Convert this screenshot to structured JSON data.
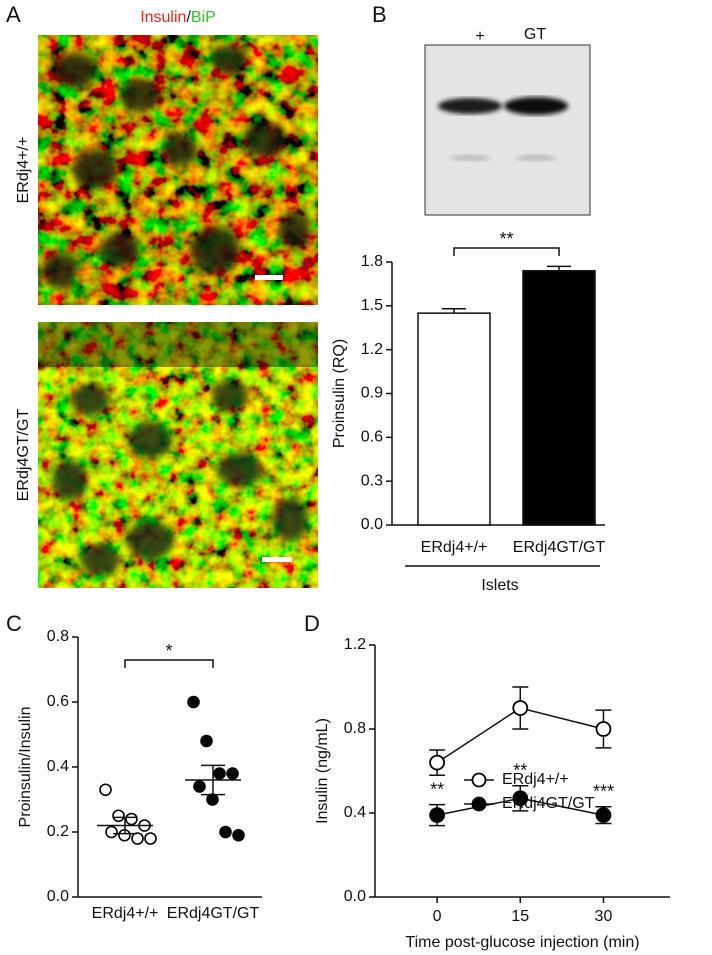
{
  "panels": [
    "A",
    "B",
    "C",
    "D"
  ],
  "images": {
    "title_parts": [
      "Insulin",
      "/",
      "BiP"
    ],
    "labels": [
      "ERdj4+/+",
      "ERdj4GT/GT"
    ]
  },
  "blot": {
    "lanes": [
      "+",
      "GT"
    ]
  },
  "chart_data": [
    {
      "type": "bar",
      "ylabel": "Proinsulin (RQ)",
      "categories": [
        "ERdj4+/+",
        "ERdj4GT/GT"
      ],
      "values": [
        1.45,
        1.74
      ],
      "errors": [
        0.03,
        0.03
      ],
      "colors": [
        "#ffffff",
        "#000000"
      ],
      "ylim": [
        0,
        1.8
      ],
      "yticks": [
        {
          "value": 0,
          "label": "0.0"
        },
        0.3,
        0.6,
        0.9,
        1.2,
        1.5,
        1.8
      ],
      "group_label": "Islets",
      "significance": "**"
    },
    {
      "type": "strip",
      "ylabel": "Proinsulin/Insulin",
      "categories": [
        "ERdj4+/+",
        "ERdj4GT/GT"
      ],
      "markers": [
        "open",
        "filled"
      ],
      "values": [
        [
          0.33,
          0.25,
          0.24,
          0.22,
          0.2,
          0.19,
          0.18,
          0.18
        ],
        [
          0.6,
          0.48,
          0.38,
          0.38,
          0.34,
          0.3,
          0.2,
          0.19
        ]
      ],
      "means": [
        0.22,
        0.36
      ],
      "errors": [
        0.025,
        0.045
      ],
      "ylim": [
        0,
        0.8
      ],
      "yticks": [
        {
          "value": 0,
          "label": "0.0"
        },
        0.2,
        0.4,
        0.6,
        0.8
      ],
      "significance": "*"
    },
    {
      "type": "line",
      "xlabel": "Time post-glucose injection (min)",
      "ylabel": "Insulin (ng/mL)",
      "x": [
        0,
        15,
        30
      ],
      "series": [
        {
          "name": "ERdj4+/+",
          "marker": "open",
          "values": [
            0.64,
            0.9,
            0.8
          ],
          "errors": [
            0.06,
            0.1,
            0.09
          ]
        },
        {
          "name": "ERdj4GT/GT",
          "marker": "filled",
          "values": [
            0.39,
            0.47,
            0.39
          ],
          "errors": [
            0.05,
            0.06,
            0.04
          ],
          "annotations": [
            "**",
            "**",
            "***"
          ]
        }
      ],
      "xlim": [
        -11.2,
        42
      ],
      "xticks": [
        0,
        15,
        30
      ],
      "ylim": [
        0,
        1.2
      ],
      "yticks": [
        {
          "value": 0,
          "label": "0.0"
        },
        0.4,
        0.8,
        1.2
      ],
      "legend": "center"
    }
  ]
}
